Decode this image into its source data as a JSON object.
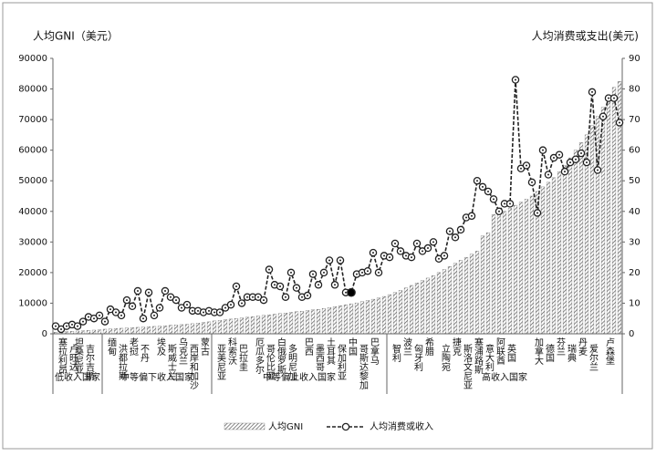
{
  "chart_data": {
    "type": "bar-line",
    "y_label": "人均GNI（美元）",
    "y2_label": "人均消费或支出(美元)",
    "categories": [
      null,
      "塞拉利昂",
      null,
      "卢旺达",
      "坦桑尼亚",
      null,
      "吉尔吉斯",
      null,
      null,
      null,
      "缅甸",
      null,
      "洪都拉斯",
      null,
      "老挝",
      null,
      "不丹",
      null,
      null,
      "埃及",
      null,
      "斯威士兰",
      null,
      "乌克兰",
      null,
      "西岸和加沙",
      null,
      "蒙古",
      null,
      null,
      "亚美尼亚",
      null,
      "科索沃",
      null,
      "巴拉圭",
      null,
      null,
      "厄瓜多尔",
      null,
      "哥伦比亚",
      null,
      "白俄罗斯",
      null,
      "多明尼加",
      null,
      null,
      "巴西",
      null,
      "墨西哥",
      null,
      "土耳其",
      null,
      "保加利亚",
      null,
      "中国",
      null,
      "哥斯达黎加",
      null,
      "巴拿马",
      null,
      null,
      null,
      "智利",
      null,
      "波兰",
      null,
      "匈牙利",
      null,
      "希腊",
      null,
      null,
      "立陶宛",
      null,
      "捷克",
      null,
      "斯洛文尼亚",
      null,
      "塞浦路斯",
      null,
      "意大利",
      null,
      "阿联酋",
      null,
      "英国",
      null,
      null,
      null,
      null,
      "加拿大",
      null,
      "德国",
      null,
      "芬兰",
      null,
      "瑞典",
      null,
      "丹麦",
      null,
      "爱尔兰",
      null,
      null,
      "卢森堡",
      null,
      null
    ],
    "groups": [
      {
        "label": "低收入国家",
        "count": 9
      },
      {
        "label": "中等偏下收入国家",
        "count": 20
      },
      {
        "label": "中等偏上收入国家",
        "count": 32
      },
      {
        "label": "高收入国家",
        "count": 43
      }
    ],
    "series": [
      {
        "name": "人均GNI",
        "type": "bar",
        "color": "#555555",
        "values": [
          500,
          600,
          700,
          800,
          900,
          1000,
          1100,
          1200,
          1300,
          1500,
          1600,
          1700,
          1800,
          1900,
          2000,
          2100,
          2200,
          2300,
          2400,
          2500,
          2600,
          2800,
          2900,
          3000,
          3100,
          3300,
          3500,
          3700,
          3900,
          4200,
          4400,
          4600,
          4800,
          5000,
          5200,
          5400,
          5600,
          5800,
          6000,
          6200,
          6400,
          6600,
          6800,
          7000,
          7200,
          7400,
          7600,
          7800,
          8000,
          8300,
          8600,
          8900,
          9200,
          9500,
          9800,
          10100,
          10500,
          10900,
          11300,
          11700,
          12200,
          12800,
          13500,
          14200,
          15000,
          15800,
          16600,
          17400,
          18200,
          19000,
          20000,
          21000,
          22000,
          23000,
          24000,
          25000,
          26000,
          27000,
          32000,
          33000,
          39000,
          39500,
          40000,
          41000,
          42000,
          43000,
          44000,
          45000,
          46500,
          48000,
          49500,
          51000,
          53000,
          55000,
          57500,
          60000,
          62500,
          65000,
          68000,
          71000,
          74000,
          77500,
          80500,
          82500
        ]
      },
      {
        "name": "人均消费或收入",
        "type": "line",
        "axis": "y2",
        "color": "#222222",
        "highlight_category": "中国",
        "values": [
          2.5,
          1.5,
          2.5,
          3,
          2.5,
          4,
          5.5,
          5,
          6,
          4,
          8,
          7,
          6,
          11,
          9,
          14,
          5,
          13.5,
          6,
          8.5,
          14,
          12,
          11,
          8.5,
          9.5,
          7.5,
          7.5,
          7,
          7.5,
          7,
          7,
          8.5,
          9.5,
          15.5,
          10,
          12,
          12,
          12,
          11,
          21,
          16,
          15.5,
          12,
          20,
          15,
          12,
          12.5,
          19.5,
          16,
          20,
          24,
          16,
          24,
          13.5,
          13.5,
          19.5,
          20,
          20.5,
          26.5,
          20,
          25.5,
          25,
          29.5,
          27,
          25.5,
          25,
          29.5,
          27,
          28,
          30,
          24.5,
          25.5,
          33.5,
          31.5,
          34,
          38,
          38.5,
          50,
          48,
          46.5,
          44,
          40,
          42.5,
          42.5,
          83,
          54,
          55,
          49.5,
          39.5,
          60,
          52,
          57.5,
          58.5,
          53,
          56,
          57,
          59,
          56,
          79,
          53.5,
          71,
          77,
          77,
          69
        ]
      }
    ],
    "ylim": [
      0,
      90000
    ],
    "yticks": [
      0,
      10000,
      20000,
      30000,
      40000,
      50000,
      60000,
      70000,
      80000,
      90000
    ],
    "y2lim": [
      0,
      90
    ],
    "y2ticks": [
      0,
      10,
      20,
      30,
      40,
      50,
      60,
      70,
      80,
      90
    ],
    "grid": false
  }
}
